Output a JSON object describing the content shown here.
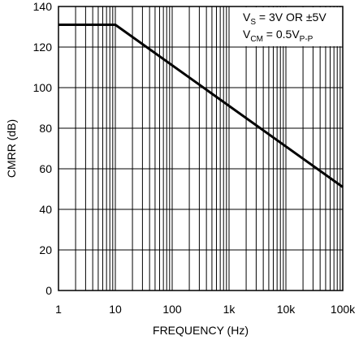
{
  "chart_data": {
    "type": "line",
    "x_scale": "log",
    "xlabel": "FREQUENCY (Hz)",
    "ylabel": "CMRR (dB)",
    "xlim": [
      1,
      100000
    ],
    "ylim": [
      0,
      140
    ],
    "grid": true,
    "x_ticks": [
      {
        "value": 1,
        "label": "1"
      },
      {
        "value": 10,
        "label": "10"
      },
      {
        "value": 100,
        "label": "100"
      },
      {
        "value": 1000,
        "label": "1k"
      },
      {
        "value": 10000,
        "label": "10k"
      },
      {
        "value": 100000,
        "label": "100k"
      }
    ],
    "y_ticks": [
      0,
      20,
      40,
      60,
      80,
      100,
      120,
      140
    ],
    "series": [
      {
        "color": "#000000",
        "points": [
          {
            "x": 1,
            "y": 131
          },
          {
            "x": 10,
            "y": 131
          },
          {
            "x": 100000,
            "y": 51
          }
        ]
      }
    ],
    "annotation": {
      "line1": {
        "main": "V",
        "sub": "S",
        "rest": " = 3V OR ±5V"
      },
      "line2": {
        "main": "V",
        "sub": "CM",
        "rest": " = 0.5V",
        "sub2": "P-P"
      }
    }
  }
}
